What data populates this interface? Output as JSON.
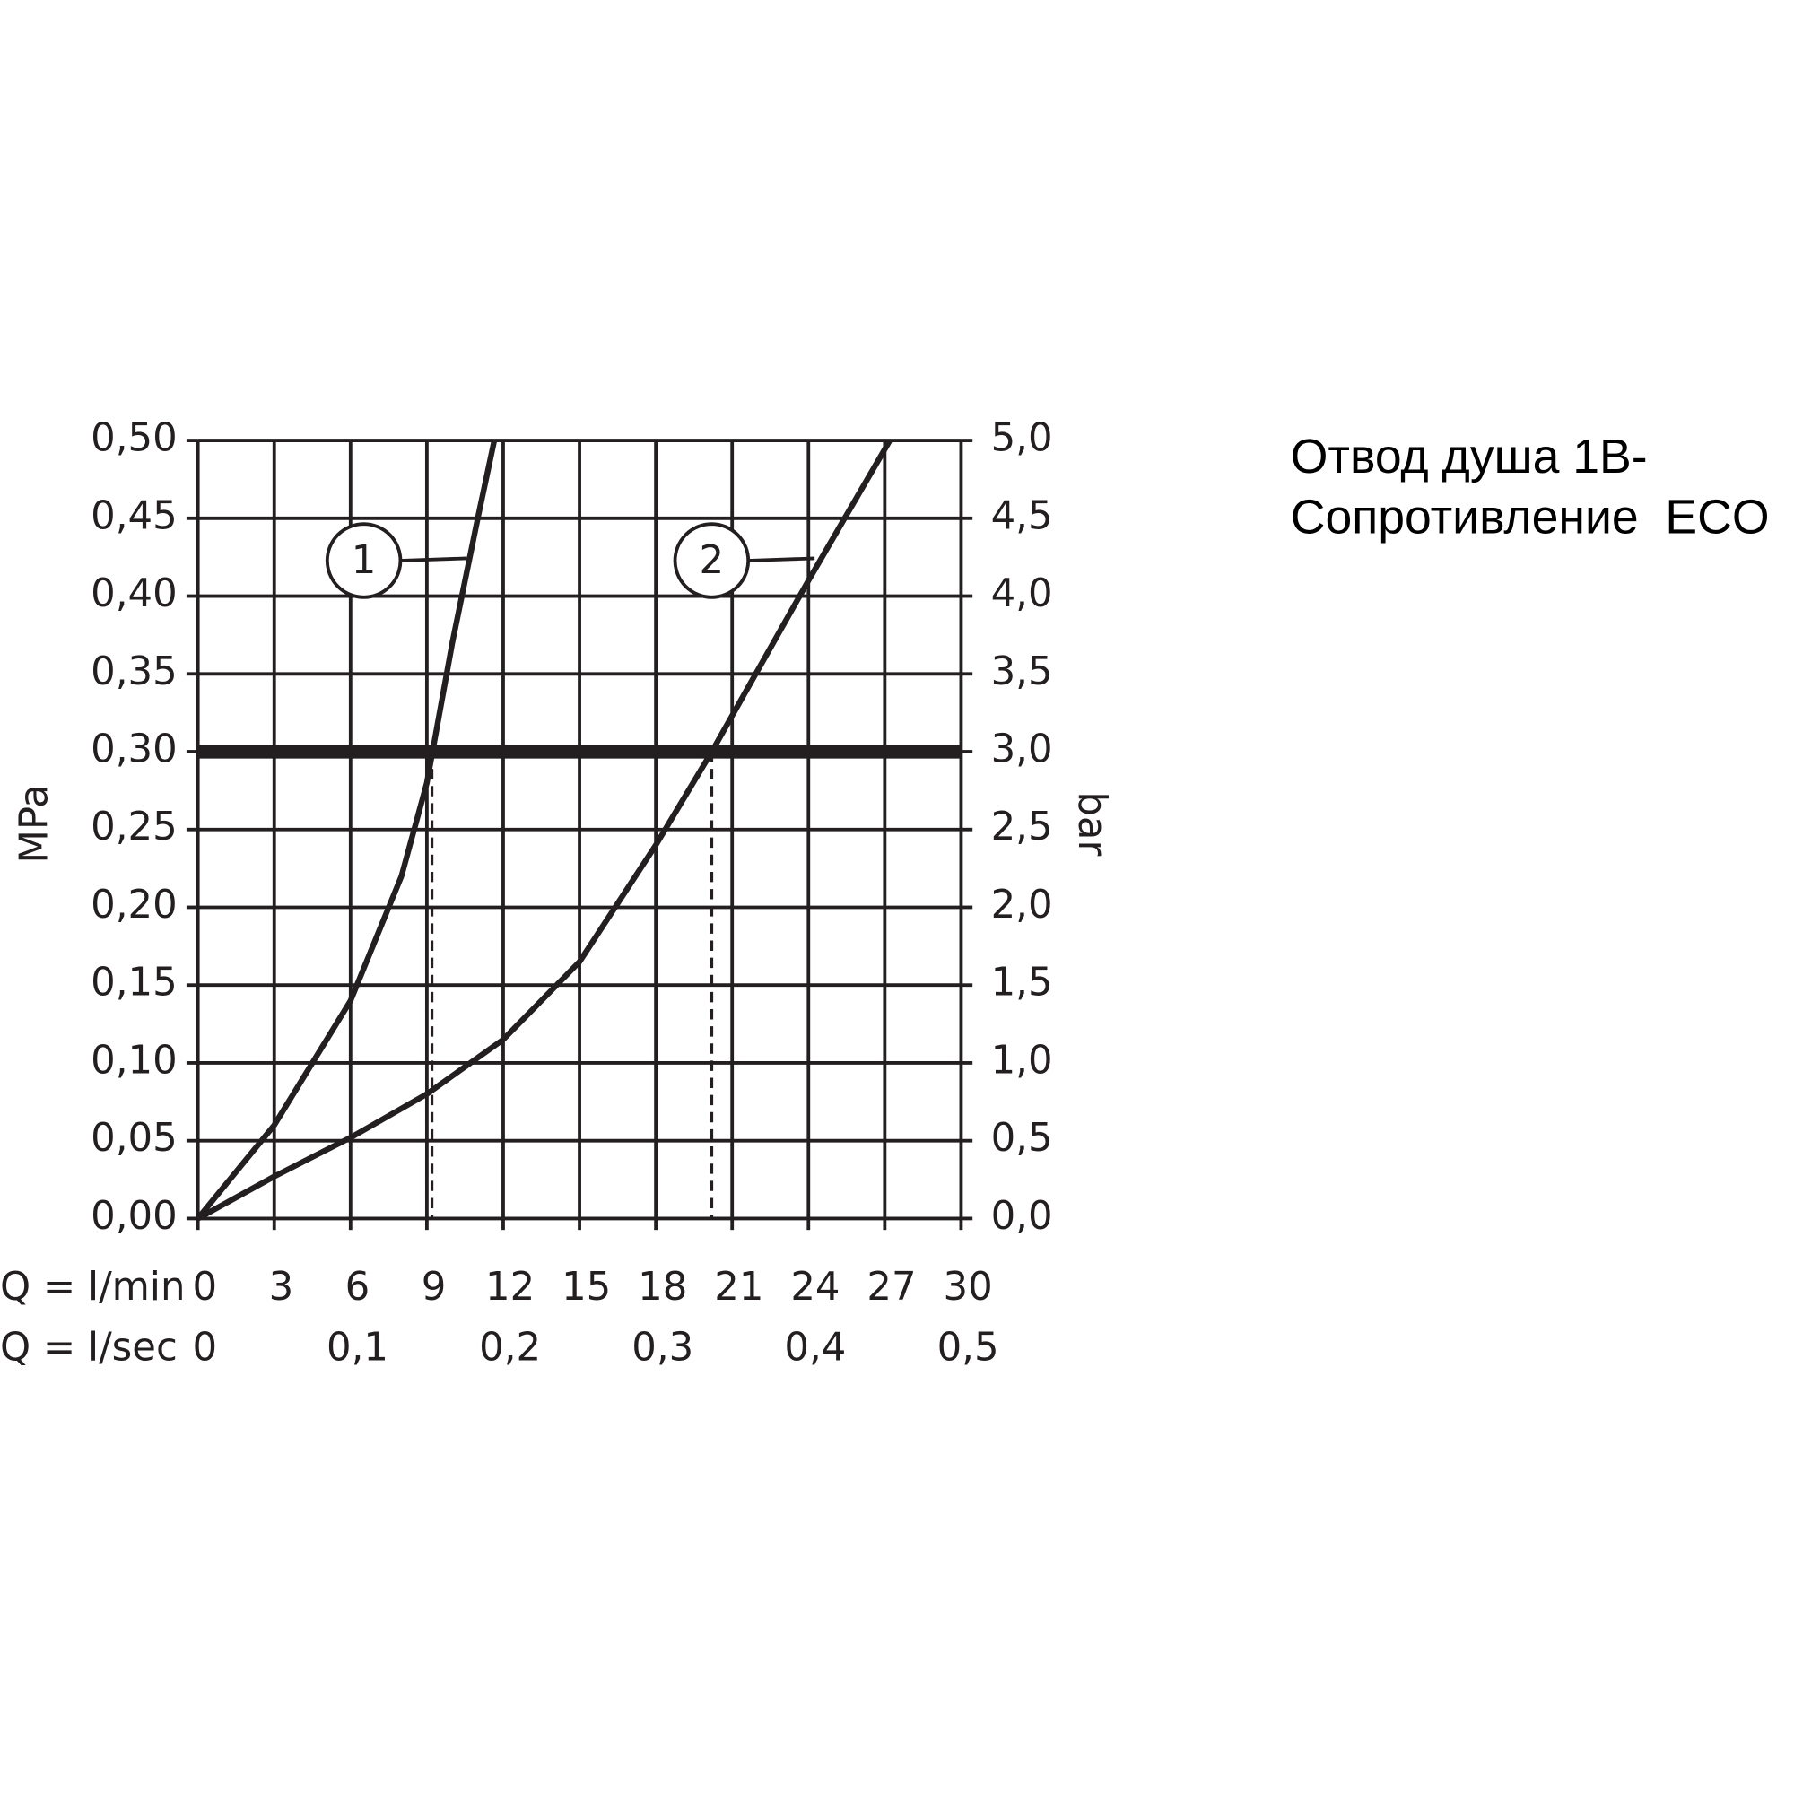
{
  "chart_data": {
    "type": "line",
    "title": [
      "Отвод душа 1В-",
      "Сопротивление  ECO"
    ],
    "xlabel": "Q = l/min",
    "x2label": "Q = l/sec",
    "ylabel": "MPa",
    "y2label": "bar",
    "xlim": [
      0,
      30
    ],
    "xticks": [
      0,
      3,
      6,
      9,
      12,
      15,
      18,
      21,
      24,
      27,
      30
    ],
    "x2lim": [
      0,
      0.5
    ],
    "x2ticks": [
      0,
      {
        "value": 0.1,
        "label": "0,1"
      },
      {
        "value": 0.2,
        "label": "0,2"
      },
      {
        "value": 0.3,
        "label": "0,3"
      },
      {
        "value": 0.4,
        "label": "0,4"
      },
      {
        "value": 0.5,
        "label": "0,5"
      }
    ],
    "ylim": [
      0,
      0.5
    ],
    "yticks": [
      {
        "value": 0,
        "label": "0,00"
      },
      {
        "value": 0.05,
        "label": "0,05"
      },
      {
        "value": 0.1,
        "label": "0,10"
      },
      {
        "value": 0.15,
        "label": "0,15"
      },
      {
        "value": 0.2,
        "label": "0,20"
      },
      {
        "value": 0.25,
        "label": "0,25"
      },
      {
        "value": 0.3,
        "label": "0,30"
      },
      {
        "value": 0.35,
        "label": "0,35"
      },
      {
        "value": 0.4,
        "label": "0,40"
      },
      {
        "value": 0.45,
        "label": "0,45"
      },
      {
        "value": 0.5,
        "label": "0,50"
      }
    ],
    "y2lim": [
      0,
      5
    ],
    "y2ticks": [
      {
        "value": 0,
        "label": "0,0"
      },
      {
        "value": 0.5,
        "label": "0,5"
      },
      {
        "value": 1,
        "label": "1,0"
      },
      {
        "value": 1.5,
        "label": "1,5"
      },
      {
        "value": 2,
        "label": "2,0"
      },
      {
        "value": 2.5,
        "label": "2,5"
      },
      {
        "value": 3,
        "label": "3,0"
      },
      {
        "value": 3.5,
        "label": "3,5"
      },
      {
        "value": 4,
        "label": "4,0"
      },
      {
        "value": 4.5,
        "label": "4,5"
      },
      {
        "value": 5,
        "label": "5,0"
      }
    ],
    "grid": true,
    "hline": 0.3,
    "vlines": [
      9.2,
      20.2
    ],
    "color": "#231f20",
    "series": [
      {
        "name": "1",
        "x": [
          0,
          3,
          6,
          8,
          9,
          10,
          11,
          11.65
        ],
        "values": [
          0,
          0.06,
          0.14,
          0.22,
          0.28,
          0.37,
          0.45,
          0.5
        ]
      },
      {
        "name": "2",
        "x": [
          0,
          3,
          6,
          9,
          12,
          15,
          18,
          20.2,
          24,
          27.2
        ],
        "values": [
          0,
          0.027,
          0.052,
          0.08,
          0.115,
          0.165,
          0.24,
          0.3,
          0.41,
          0.5
        ]
      }
    ]
  }
}
